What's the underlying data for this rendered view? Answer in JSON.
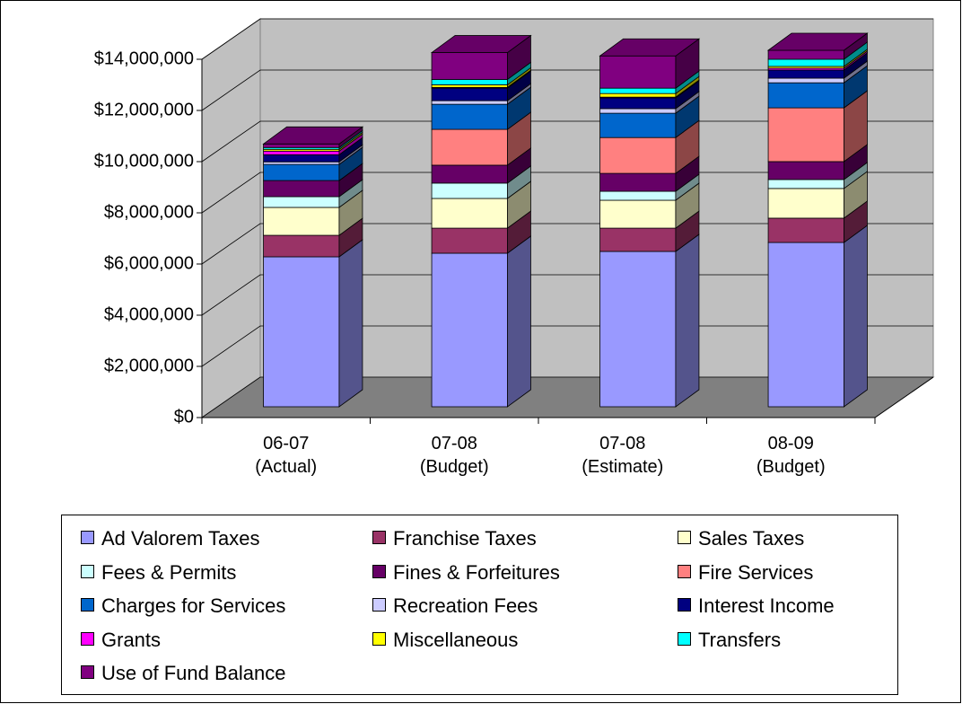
{
  "chart_data": {
    "type": "bar3d_stacked",
    "categories": [
      "06-07\n(Actual)",
      "07-08\n(Budget)",
      "07-08\n(Estimate)",
      "08-09\n(Budget)"
    ],
    "ylim": [
      0,
      14000000
    ],
    "yticks": [
      {
        "value": 0,
        "label": "$0"
      },
      {
        "value": 2000000,
        "label": "$2,000,000"
      },
      {
        "value": 4000000,
        "label": "$4,000,000"
      },
      {
        "value": 6000000,
        "label": "$6,000,000"
      },
      {
        "value": 8000000,
        "label": "$8,000,000"
      },
      {
        "value": 10000000,
        "label": "$10,000,000"
      },
      {
        "value": 12000000,
        "label": "$12,000,000"
      },
      {
        "value": 14000000,
        "label": "$14,000,000"
      }
    ],
    "grid": true,
    "legend": "bottom",
    "series": [
      {
        "name": "Ad Valorem Taxes",
        "color": "#9999ff",
        "values": [
          5860000,
          6000000,
          6070000,
          6420000
        ]
      },
      {
        "name": "Franchise Taxes",
        "color": "#993366",
        "values": [
          840000,
          980000,
          910000,
          950000
        ]
      },
      {
        "name": "Sales Taxes",
        "color": "#ffffcc",
        "values": [
          1090000,
          1160000,
          1090000,
          1160000
        ]
      },
      {
        "name": "Fees & Permits",
        "color": "#ccffff",
        "values": [
          420000,
          600000,
          350000,
          350000
        ]
      },
      {
        "name": "Fines & Forfeitures",
        "color": "#660066",
        "values": [
          630000,
          700000,
          700000,
          700000
        ]
      },
      {
        "name": "Fire Services",
        "color": "#ff8080",
        "values": [
          0,
          1400000,
          1400000,
          2100000
        ]
      },
      {
        "name": "Charges for Services",
        "color": "#0066cc",
        "values": [
          630000,
          980000,
          950000,
          980000
        ]
      },
      {
        "name": "Recreation Fees",
        "color": "#ccccff",
        "values": [
          100000,
          140000,
          180000,
          180000
        ]
      },
      {
        "name": "Interest Income",
        "color": "#000080",
        "values": [
          280000,
          490000,
          420000,
          320000
        ]
      },
      {
        "name": "Grants",
        "color": "#ff00ff",
        "values": [
          140000,
          30000,
          30000,
          70000
        ]
      },
      {
        "name": "Miscellaneous",
        "color": "#ffff00",
        "values": [
          70000,
          100000,
          140000,
          70000
        ]
      },
      {
        "name": "Transfers",
        "color": "#00ffff",
        "values": [
          70000,
          210000,
          210000,
          280000
        ]
      },
      {
        "name": "Use of Fund Balance",
        "color": "#800080",
        "values": [
          140000,
          1050000,
          1260000,
          350000
        ]
      }
    ]
  }
}
